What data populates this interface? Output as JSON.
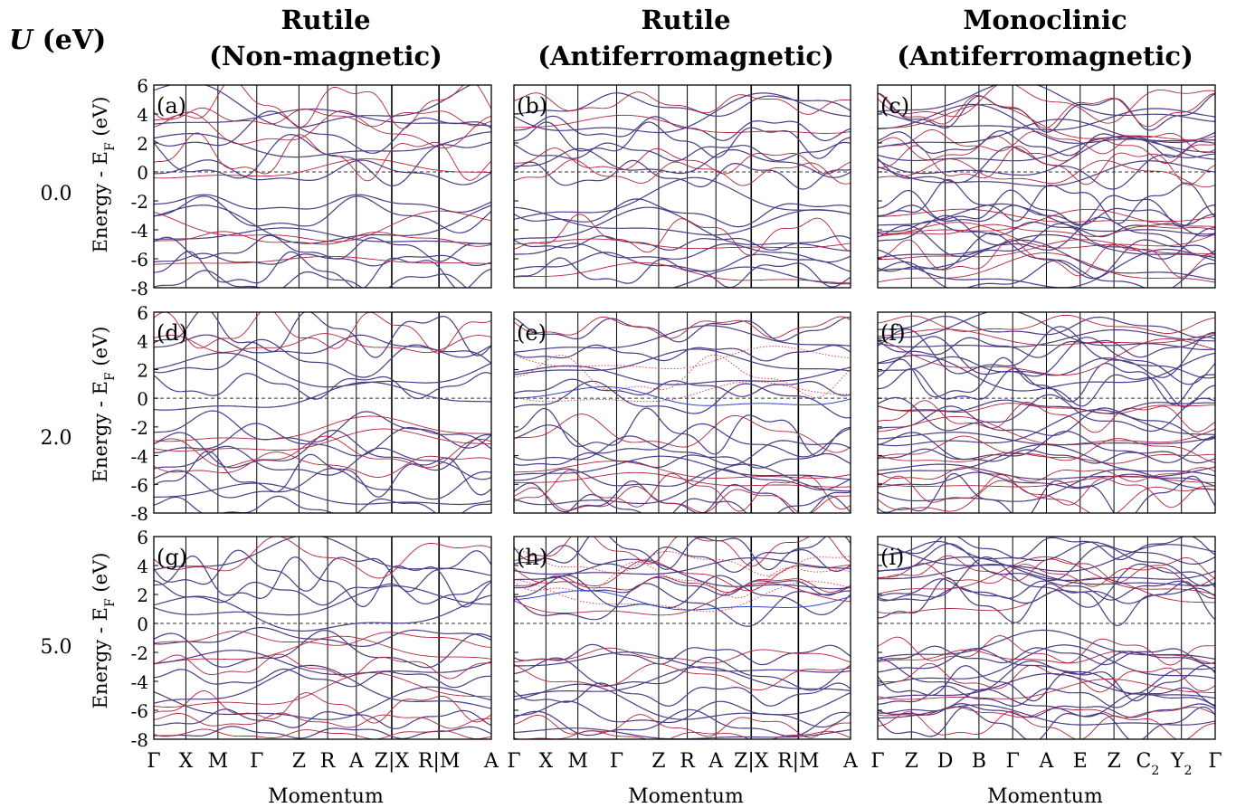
{
  "figure": {
    "u_header": "U (eV)",
    "u_header_var": "U",
    "u_header_unit": " (eV)"
  },
  "columns": [
    {
      "title_line1": "Rutile",
      "title_line2": "(Non-magnetic)"
    },
    {
      "title_line1": "Rutile",
      "title_line2": "(Antiferromagnetic)"
    },
    {
      "title_line1": "Monoclinic",
      "title_line2": "(Antiferromagnetic)"
    }
  ],
  "rows": [
    {
      "u_value": "0.0"
    },
    {
      "u_value": "2.0"
    },
    {
      "u_value": "5.0"
    }
  ],
  "colors": {
    "band_main": "#4b3b86",
    "band_alt": "#b0243c",
    "band_blue": "#3346c8",
    "dotted_red": "#e0303a",
    "fermi_line": "#333333",
    "frame": "#000000"
  },
  "chart_data": {
    "type": "line",
    "ylabel": "Energy - E_F (eV)",
    "ylabel_main": "Energy - E",
    "ylabel_sub": "F",
    "ylabel_unit": " (eV)",
    "xlabel": "Momentum",
    "ylim": [
      -8,
      6
    ],
    "yticks": [
      "6",
      "4",
      "2",
      "0",
      "-2",
      "-4",
      "-6",
      "-8"
    ],
    "fermi_level": 0,
    "rutile_kpath": [
      "Γ",
      "X",
      "M",
      "Γ",
      "Z",
      "R",
      "A",
      "Z|X",
      "R|M",
      "A"
    ],
    "monoclinic_kpath": [
      "Γ",
      "Z",
      "D",
      "B",
      "Γ",
      "A",
      "E",
      "Z",
      "C2",
      "Y2",
      "Γ"
    ],
    "rutile_kpath_positions": [
      0,
      0.095,
      0.19,
      0.305,
      0.43,
      0.515,
      0.6,
      0.705,
      0.845,
      1.0
    ],
    "rutile_segment_breaks": [
      0.705,
      0.845
    ],
    "monoclinic_kpath_positions": [
      0,
      0.1,
      0.2,
      0.3,
      0.4,
      0.5,
      0.6,
      0.7,
      0.8,
      0.9,
      1.0
    ],
    "panels": [
      {
        "label": "(a)",
        "structure": "rutile",
        "magnetic": false,
        "U": 0.0,
        "gap": 0.0,
        "conduction_min": -0.5,
        "conduction_max": 5.0,
        "valence_max": -1.8,
        "valence_min": -8.0,
        "bands_per_region": 6
      },
      {
        "label": "(b)",
        "structure": "rutile",
        "magnetic": true,
        "U": 0.0,
        "gap": 0.0,
        "conduction_min": -0.6,
        "conduction_max": 5.0,
        "valence_max": -1.8,
        "valence_min": -8.0,
        "bands_per_region": 7
      },
      {
        "label": "(c)",
        "structure": "monoclinic",
        "magnetic": true,
        "U": 0.0,
        "gap": 0.0,
        "conduction_min": -0.5,
        "conduction_max": 4.9,
        "valence_max": -1.8,
        "valence_min": -7.5,
        "bands_per_region": 10
      },
      {
        "label": "(d)",
        "structure": "rutile",
        "magnetic": false,
        "U": 2.0,
        "gap": 0.0,
        "conduction_min": -0.5,
        "conduction_max": 5.0,
        "valence_max": -1.8,
        "valence_min": -8.0,
        "bands_per_region": 6
      },
      {
        "label": "(e)",
        "structure": "rutile",
        "magnetic": true,
        "U": 2.0,
        "gap": 0.0,
        "conduction_min": -0.5,
        "conduction_max": 5.2,
        "valence_max": -2.0,
        "valence_min": -8.0,
        "bands_per_region": 7
      },
      {
        "label": "(f)",
        "structure": "monoclinic",
        "magnetic": true,
        "U": 2.0,
        "gap": 0.5,
        "conduction_min": 0.5,
        "conduction_max": 5.2,
        "valence_max": -0.3,
        "valence_min": -7.2,
        "bands_per_region": 10
      },
      {
        "label": "(g)",
        "structure": "rutile",
        "magnetic": false,
        "U": 5.0,
        "gap": 0.0,
        "conduction_min": 0.2,
        "conduction_max": 4.8,
        "valence_max": -0.5,
        "valence_min": -8.0,
        "bands_per_region": 6
      },
      {
        "label": "(h)",
        "structure": "rutile",
        "magnetic": true,
        "U": 5.0,
        "gap": 1.0,
        "conduction_min": 1.0,
        "conduction_max": 5.4,
        "valence_max": -1.8,
        "valence_min": -8.0,
        "bands_per_region": 7
      },
      {
        "label": "(i)",
        "structure": "monoclinic",
        "magnetic": true,
        "U": 5.0,
        "gap": 1.5,
        "conduction_min": 1.3,
        "conduction_max": 5.5,
        "valence_max": -1.5,
        "valence_min": -7.2,
        "bands_per_region": 10
      }
    ]
  }
}
